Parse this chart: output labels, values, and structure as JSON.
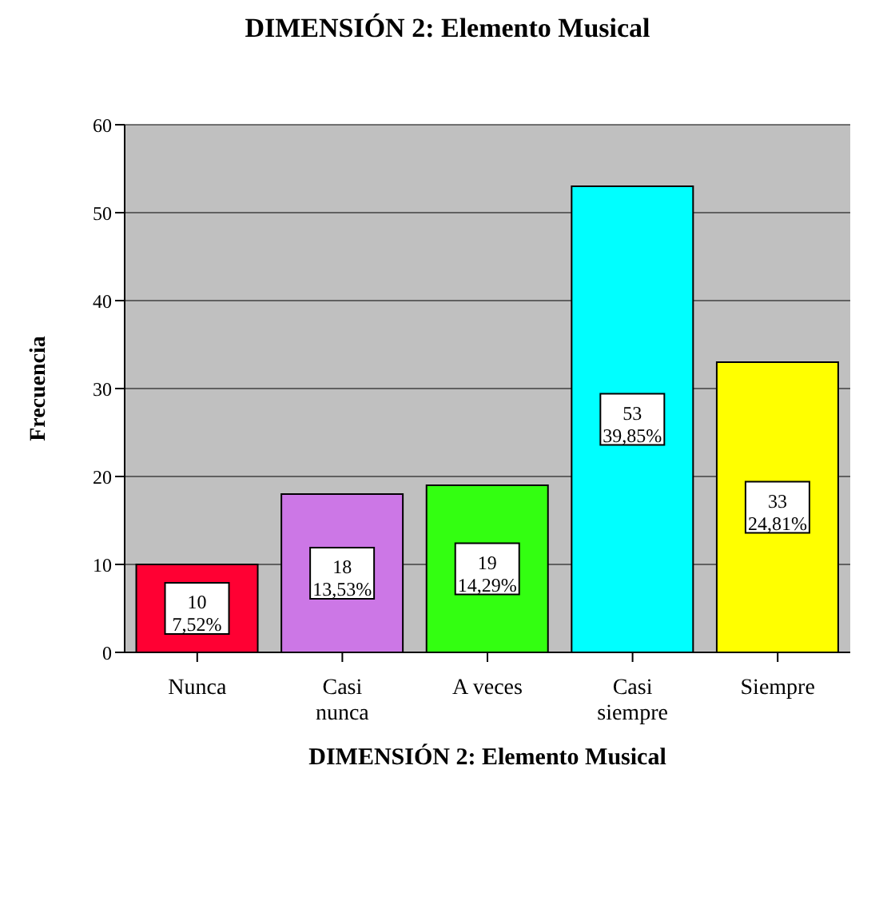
{
  "chart_data": {
    "type": "bar",
    "title": "DIMENSIÓN 2: Elemento Musical",
    "xlabel": "DIMENSIÓN 2: Elemento Musical",
    "ylabel": "Frecuencia",
    "categories": [
      "Nunca",
      "Casi nunca",
      "A veces",
      "Casi siempre",
      "Siempre"
    ],
    "values": [
      10,
      18,
      19,
      53,
      33
    ],
    "colors": [
      "#ff0033",
      "#cc77e6",
      "#33ff11",
      "#00ffff",
      "#ffff00"
    ],
    "value_labels": [
      "10\n7,52%",
      "18\n13,53%",
      "19\n14,29%",
      "53\n39,85%",
      "33\n24,81%"
    ],
    "ylim": [
      0,
      60
    ],
    "yticks": [
      0,
      10,
      20,
      30,
      40,
      50,
      60
    ],
    "grid": "y"
  }
}
